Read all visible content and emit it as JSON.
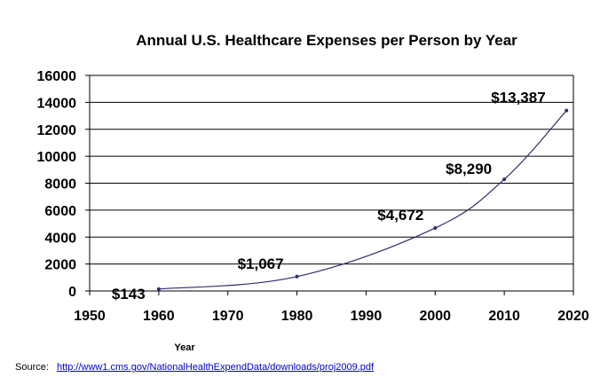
{
  "chart_data": {
    "type": "line",
    "title": "Annual U.S. Healthcare Expenses per Person by Year",
    "xlabel": "Year",
    "ylabel": "",
    "xlim": [
      1950,
      2020
    ],
    "ylim": [
      0,
      16000
    ],
    "x_ticks": [
      1950,
      1960,
      1970,
      1980,
      1990,
      2000,
      2010,
      2020
    ],
    "y_ticks": [
      0,
      2000,
      4000,
      6000,
      8000,
      10000,
      12000,
      14000,
      16000
    ],
    "grid": true,
    "legend": "none",
    "series": [
      {
        "x": [
          1960,
          1980,
          2000,
          2010,
          2019
        ],
        "values": [
          143,
          1067,
          4672,
          8290,
          13387
        ],
        "labels": [
          "$143",
          "$1,067",
          "$4,672",
          "$8,290",
          "$13,387"
        ],
        "color": "#2e2e6e"
      }
    ]
  },
  "source": {
    "label": "Source:",
    "link_text": "http://www1.cms.gov/NationalHealthExpendData/downloads/proj2009.pdf"
  }
}
